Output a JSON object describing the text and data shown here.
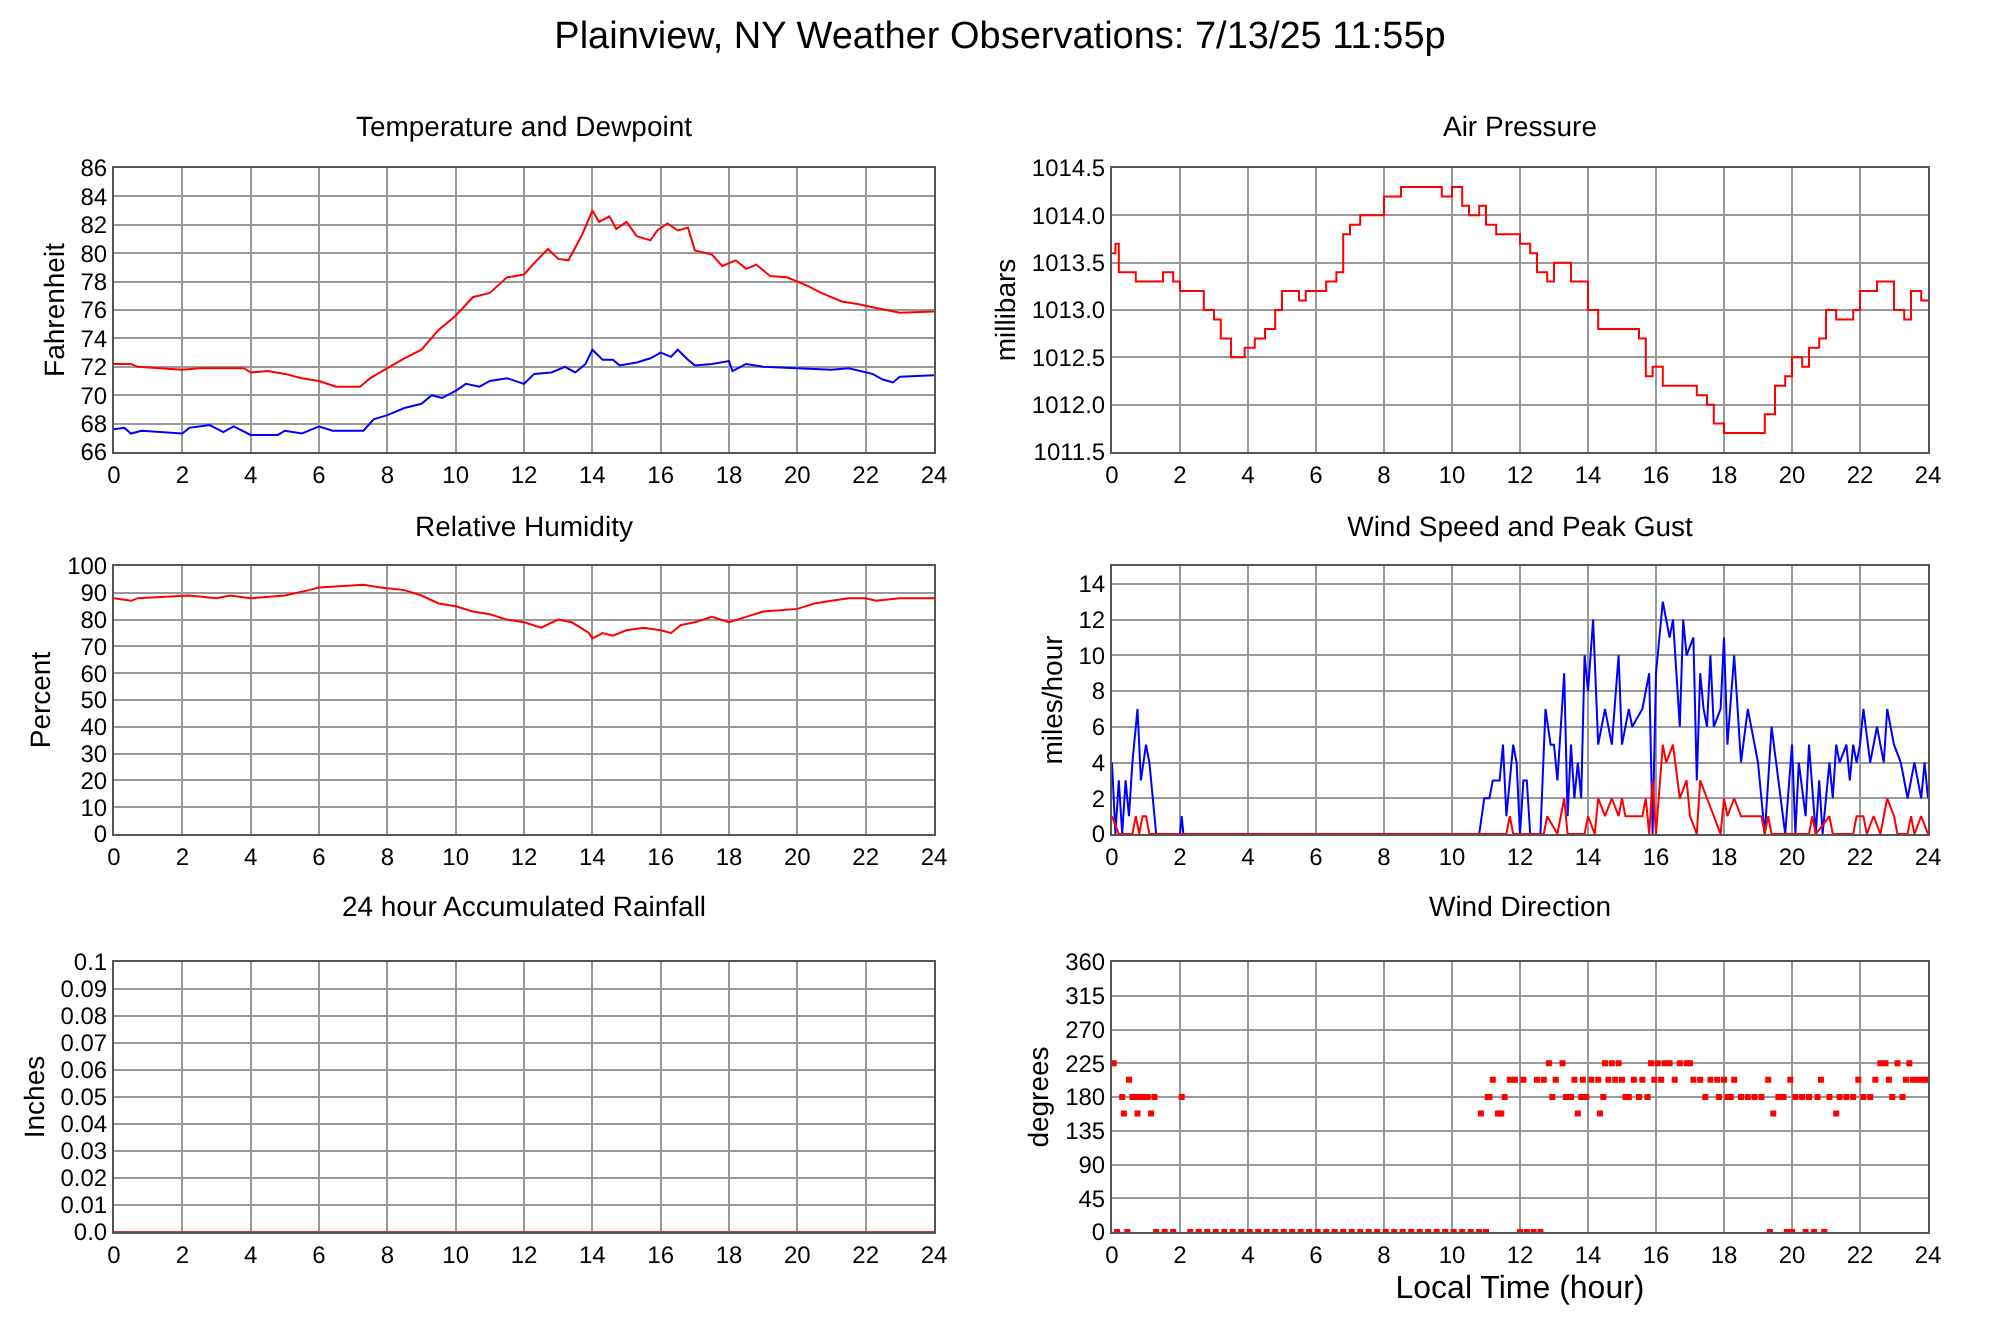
{
  "chart_data": [
    {
      "type": "line",
      "title": "Temperature and Dewpoint",
      "ylabel": "Fahrenheit",
      "annotations": [
        "Plainview, NY Weather Observations: 7/13/25 11:55p"
      ],
      "xlim": [
        0,
        24
      ],
      "xticks": [
        0,
        2,
        4,
        6,
        8,
        10,
        12,
        14,
        16,
        18,
        20,
        22,
        24
      ],
      "ylim": [
        66,
        86
      ],
      "yticks": [
        66,
        68,
        70,
        72,
        74,
        76,
        78,
        80,
        82,
        84,
        86
      ],
      "grid": true,
      "series": [
        {
          "color": "#ff0000",
          "x": [
            0,
            0.5,
            0.7,
            2,
            2.5,
            3.8,
            4,
            4.5,
            5,
            5.5,
            6,
            6.5,
            7.2,
            7.5,
            8,
            8.5,
            9,
            9.5,
            10,
            10.5,
            11,
            11.5,
            12,
            12.3,
            12.7,
            13,
            13.3,
            13.7,
            14,
            14.2,
            14.5,
            14.7,
            15,
            15.3,
            15.7,
            15.9,
            16.2,
            16.5,
            16.8,
            17,
            17.5,
            17.8,
            18.2,
            18.5,
            18.8,
            19.2,
            19.7,
            20.3,
            20.7,
            21.3,
            21.8,
            22.2,
            22.6,
            23,
            24
          ],
          "values": [
            72.2,
            72.2,
            72.0,
            71.8,
            71.9,
            71.9,
            71.6,
            71.7,
            71.5,
            71.2,
            71.0,
            70.6,
            70.6,
            71.2,
            71.9,
            72.6,
            73.2,
            74.6,
            75.6,
            76.9,
            77.2,
            78.3,
            78.5,
            79.3,
            80.3,
            79.6,
            79.5,
            81.3,
            83.0,
            82.2,
            82.6,
            81.7,
            82.2,
            81.2,
            80.9,
            81.6,
            82.1,
            81.6,
            81.8,
            80.2,
            79.9,
            79.1,
            79.5,
            78.9,
            79.2,
            78.4,
            78.3,
            77.7,
            77.2,
            76.6,
            76.4,
            76.2,
            76.0,
            75.8,
            75.9
          ]
        },
        {
          "color": "#0000ff",
          "x": [
            0,
            0.3,
            0.5,
            0.8,
            2,
            2.2,
            2.8,
            3.2,
            3.5,
            4,
            4.8,
            5,
            5.5,
            6,
            6.4,
            7.3,
            7.6,
            8,
            8.5,
            9,
            9.3,
            9.6,
            10,
            10.3,
            10.7,
            11,
            11.5,
            12,
            12.3,
            12.8,
            13.2,
            13.5,
            13.8,
            14,
            14.3,
            14.6,
            14.8,
            15.3,
            15.7,
            16,
            16.3,
            16.5,
            16.8,
            17,
            17.5,
            18,
            18.1,
            18.5,
            19,
            20,
            21,
            21.5,
            22.2,
            22.5,
            22.8,
            23,
            24
          ],
          "values": [
            67.6,
            67.7,
            67.3,
            67.5,
            67.3,
            67.7,
            67.9,
            67.4,
            67.8,
            67.2,
            67.2,
            67.5,
            67.3,
            67.8,
            67.5,
            67.5,
            68.3,
            68.6,
            69.1,
            69.4,
            70.0,
            69.8,
            70.3,
            70.8,
            70.6,
            71.0,
            71.2,
            70.8,
            71.5,
            71.6,
            72.0,
            71.6,
            72.2,
            73.2,
            72.5,
            72.5,
            72.1,
            72.3,
            72.6,
            73.0,
            72.7,
            73.2,
            72.5,
            72.1,
            72.2,
            72.4,
            71.7,
            72.2,
            72.0,
            71.9,
            71.8,
            71.9,
            71.5,
            71.1,
            70.9,
            71.3,
            71.4
          ]
        }
      ]
    },
    {
      "type": "step",
      "title": "Air Pressure",
      "ylabel": "millibars",
      "xlim": [
        0,
        24
      ],
      "xticks": [
        0,
        2,
        4,
        6,
        8,
        10,
        12,
        14,
        16,
        18,
        20,
        22,
        24
      ],
      "ylim": [
        1011.5,
        1014.5
      ],
      "yticks": [
        1011.5,
        {
          "value": 1012,
          "label": "1012.0"
        },
        1012.5,
        {
          "value": 1013,
          "label": "1013.0"
        },
        1013.5,
        {
          "value": 1014,
          "label": "1014.0"
        },
        1014.5
      ],
      "grid": true,
      "series": [
        {
          "color": "#ff0000",
          "x": [
            0,
            0.1,
            0.2,
            0.7,
            1.5,
            1.8,
            2,
            2.7,
            3,
            3.2,
            3.5,
            3.9,
            4.2,
            4.5,
            4.8,
            5,
            5.5,
            5.7,
            6.3,
            6.6,
            6.8,
            7,
            7.3,
            8,
            8.5,
            9.7,
            10,
            10.3,
            10.5,
            10.8,
            11,
            11.3,
            12,
            12.3,
            12.5,
            12.8,
            13,
            13.5,
            14,
            14.3,
            15.5,
            15.7,
            15.9,
            16.2,
            17.2,
            17.5,
            17.7,
            18,
            19.2,
            19.5,
            19.8,
            20,
            20.3,
            20.5,
            20.8,
            21,
            21.3,
            21.8,
            22,
            22.5,
            23,
            23.3,
            23.5,
            23.8,
            24
          ],
          "values": [
            1013.6,
            1013.7,
            1013.4,
            1013.3,
            1013.4,
            1013.3,
            1013.2,
            1013.0,
            1012.9,
            1012.7,
            1012.5,
            1012.6,
            1012.7,
            1012.8,
            1013.0,
            1013.2,
            1013.1,
            1013.2,
            1013.3,
            1013.4,
            1013.8,
            1013.9,
            1014.0,
            1014.2,
            1014.3,
            1014.2,
            1014.3,
            1014.1,
            1014.0,
            1014.1,
            1013.9,
            1013.8,
            1013.7,
            1013.6,
            1013.4,
            1013.3,
            1013.5,
            1013.3,
            1013.0,
            1012.8,
            1012.7,
            1012.3,
            1012.4,
            1012.2,
            1012.1,
            1012.0,
            1011.8,
            1011.7,
            1011.9,
            1012.2,
            1012.3,
            1012.5,
            1012.4,
            1012.6,
            1012.7,
            1013.0,
            1012.9,
            1013.0,
            1013.2,
            1013.3,
            1013.0,
            1012.9,
            1013.2,
            1013.1,
            1013.1
          ]
        }
      ]
    },
    {
      "type": "line",
      "title": "Relative Humidity",
      "ylabel": "Percent",
      "xlim": [
        0,
        24
      ],
      "xticks": [
        0,
        2,
        4,
        6,
        8,
        10,
        12,
        14,
        16,
        18,
        20,
        22,
        24
      ],
      "ylim": [
        0,
        100
      ],
      "yticks": [
        0,
        10,
        20,
        30,
        40,
        50,
        60,
        70,
        80,
        90,
        100
      ],
      "grid": true,
      "series": [
        {
          "color": "#ff0000",
          "x": [
            0,
            0.5,
            0.7,
            2.2,
            3,
            3.4,
            4,
            5,
            5.7,
            6,
            7.3,
            7.8,
            8.5,
            9,
            9.5,
            10,
            10.5,
            11,
            11.5,
            12,
            12.5,
            13,
            13.4,
            13.9,
            14,
            14.3,
            14.6,
            15,
            15.5,
            16,
            16.3,
            16.6,
            17,
            17.5,
            18,
            18.5,
            19,
            20,
            20.5,
            21,
            21.5,
            22,
            22.3,
            23,
            24
          ],
          "values": [
            88,
            87,
            88,
            89,
            88,
            89,
            88,
            89,
            91,
            92,
            93,
            92,
            91,
            89,
            86,
            85,
            83,
            82,
            80,
            79,
            77,
            80,
            79,
            75,
            73,
            75,
            74,
            76,
            77,
            76,
            75,
            78,
            79,
            81,
            79,
            81,
            83,
            84,
            86,
            87,
            88,
            88,
            87,
            88,
            88
          ]
        }
      ]
    },
    {
      "type": "line",
      "title": "Wind Speed and Peak Gust",
      "ylabel": "miles/hour",
      "xlim": [
        0,
        24
      ],
      "xticks": [
        0,
        2,
        4,
        6,
        8,
        10,
        12,
        14,
        16,
        18,
        20,
        22,
        24
      ],
      "ylim": [
        0,
        15
      ],
      "yticks": [
        0,
        2,
        4,
        6,
        8,
        10,
        12,
        14
      ],
      "grid": true,
      "series": [
        {
          "color": "#0000ff",
          "x": [
            0,
            0.1,
            0.2,
            0.3,
            0.4,
            0.5,
            0.6,
            0.75,
            0.85,
            1.0,
            1.1,
            1.3,
            2,
            2.05,
            2.1,
            10.8,
            10.95,
            11.1,
            11.2,
            11.4,
            11.5,
            11.6,
            11.8,
            11.9,
            12,
            12.1,
            12.2,
            12.3,
            12.6,
            12.75,
            12.9,
            13.0,
            13.1,
            13.3,
            13.4,
            13.5,
            13.6,
            13.7,
            13.8,
            13.9,
            14.0,
            14.15,
            14.3,
            14.5,
            14.7,
            14.9,
            15.0,
            15.2,
            15.3,
            15.6,
            15.8,
            15.9,
            16.0,
            16.2,
            16.4,
            16.5,
            16.7,
            16.8,
            16.9,
            17.1,
            17.2,
            17.3,
            17.4,
            17.5,
            17.6,
            17.7,
            17.9,
            18.0,
            18.1,
            18.3,
            18.5,
            18.7,
            18.9,
            19.0,
            19.2,
            19.4,
            19.6,
            19.8,
            20.0,
            20.1,
            20.2,
            20.4,
            20.5,
            20.7,
            20.8,
            20.9,
            21.1,
            21.2,
            21.3,
            21.4,
            21.6,
            21.7,
            21.8,
            21.9,
            22.0,
            22.1,
            22.3,
            22.5,
            22.7,
            22.8,
            23.0,
            23.2,
            23.4,
            23.6,
            23.8,
            23.9,
            24
          ],
          "values": [
            4,
            0,
            3,
            0,
            3,
            1,
            4,
            7,
            3,
            5,
            4,
            0,
            0,
            1,
            0,
            0,
            2,
            2,
            3,
            3,
            5,
            1,
            5,
            4,
            0,
            3,
            3,
            0,
            0,
            7,
            5,
            5,
            3,
            9,
            1,
            5,
            2,
            4,
            2,
            10,
            8,
            12,
            5,
            7,
            5,
            10,
            5,
            7,
            6,
            7,
            9,
            0,
            9,
            13,
            11,
            12,
            6,
            12,
            10,
            11,
            3,
            9,
            7,
            6,
            10,
            6,
            7,
            11,
            5,
            10,
            4,
            7,
            5,
            4,
            0,
            6,
            3,
            0,
            5,
            0,
            4,
            1,
            5,
            0,
            3,
            0,
            4,
            2,
            5,
            4,
            5,
            3,
            5,
            4,
            5,
            7,
            4,
            6,
            4,
            7,
            5,
            4,
            2,
            4,
            2,
            4,
            2
          ]
        },
        {
          "color": "#ff0000",
          "x": [
            0,
            0.2,
            0.6,
            0.7,
            0.8,
            0.9,
            1.0,
            1.1,
            11.6,
            11.7,
            11.8,
            12.7,
            12.8,
            13.1,
            13.3,
            13.4,
            13.9,
            14.0,
            14.2,
            14.3,
            14.5,
            14.7,
            14.9,
            15.0,
            15.1,
            15.6,
            15.7,
            15.8,
            15.9,
            16.0,
            16.2,
            16.3,
            16.5,
            16.7,
            16.9,
            17.0,
            17.2,
            17.3,
            17.5,
            17.7,
            17.9,
            18.0,
            18.1,
            18.3,
            18.5,
            19.1,
            19.2,
            19.3,
            19.4,
            20.5,
            20.6,
            20.7,
            21.1,
            21.2,
            21.8,
            21.9,
            22.1,
            22.2,
            22.4,
            22.6,
            22.8,
            23.0,
            23.1,
            23.4,
            23.5,
            23.6,
            23.8,
            24
          ],
          "values": [
            1,
            0,
            0,
            1,
            0,
            1,
            1,
            0,
            0,
            1,
            0,
            0,
            1,
            0,
            2,
            0,
            0,
            1,
            0,
            2,
            1,
            2,
            1,
            2,
            1,
            1,
            2,
            0,
            3,
            0,
            5,
            4,
            5,
            2,
            3,
            1,
            0,
            3,
            2,
            1,
            0,
            2,
            1,
            2,
            1,
            1,
            0,
            1,
            0,
            0,
            1,
            0,
            1,
            0,
            0,
            1,
            1,
            0,
            1,
            0,
            2,
            1,
            0,
            0,
            1,
            0,
            1,
            0
          ]
        }
      ]
    },
    {
      "type": "line",
      "title": "24 hour Accumulated Rainfall",
      "ylabel": "Inches",
      "xlim": [
        0,
        24
      ],
      "xticks": [
        0,
        2,
        4,
        6,
        8,
        10,
        12,
        14,
        16,
        18,
        20,
        22,
        24
      ],
      "ylim": [
        0,
        0.1
      ],
      "yticks": [
        {
          "value": 0,
          "label": "0.0"
        },
        0.01,
        0.02,
        0.03,
        0.04,
        0.05,
        0.06,
        0.07,
        0.08,
        0.09,
        0.1
      ],
      "grid": true,
      "series": [
        {
          "color": "#c04040",
          "x": [
            0,
            24
          ],
          "values": [
            0,
            0
          ]
        }
      ]
    },
    {
      "type": "scatter",
      "title": "Wind Direction",
      "xlabel": "Local Time (hour)",
      "ylabel": "degrees",
      "xlim": [
        0,
        24
      ],
      "xticks": [
        0,
        2,
        4,
        6,
        8,
        10,
        12,
        14,
        16,
        18,
        20,
        22,
        24
      ],
      "ylim": [
        0,
        360
      ],
      "yticks": [
        0,
        45,
        90,
        135,
        180,
        225,
        270,
        315,
        360
      ],
      "grid": true,
      "marker": "square",
      "series": [
        {
          "color": "#ff0000",
          "x": [
            0.05,
            0.15,
            0.3,
            0.35,
            0.45,
            0.5,
            0.6,
            0.7,
            0.75,
            0.85,
            0.95,
            1.05,
            1.15,
            1.25,
            1.3,
            1.55,
            1.8,
            2.05,
            2.3,
            2.55,
            2.8,
            3.05,
            3.3,
            3.55,
            3.8,
            4.05,
            4.3,
            4.55,
            4.8,
            5.05,
            5.3,
            5.55,
            5.8,
            6.05,
            6.3,
            6.55,
            6.8,
            7.05,
            7.3,
            7.55,
            7.8,
            8.05,
            8.3,
            8.55,
            8.8,
            9.05,
            9.3,
            9.55,
            9.8,
            10.05,
            10.3,
            10.55,
            10.8,
            10.85,
            11.0,
            11.05,
            11.1,
            11.2,
            11.35,
            11.45,
            11.55,
            11.7,
            11.85,
            12.0,
            12.1,
            12.2,
            12.4,
            12.5,
            12.6,
            12.7,
            12.85,
            12.95,
            13.05,
            13.25,
            13.35,
            13.5,
            13.6,
            13.7,
            13.8,
            13.85,
            13.95,
            14.1,
            14.3,
            14.35,
            14.45,
            14.5,
            14.6,
            14.7,
            14.8,
            14.9,
            15.0,
            15.1,
            15.2,
            15.35,
            15.5,
            15.6,
            15.75,
            15.85,
            15.95,
            16.05,
            16.15,
            16.25,
            16.4,
            16.55,
            16.7,
            16.9,
            17.0,
            17.1,
            17.3,
            17.45,
            17.6,
            17.8,
            17.85,
            18.0,
            18.1,
            18.2,
            18.3,
            18.5,
            18.7,
            18.9,
            19.1,
            19.3,
            19.35,
            19.45,
            19.6,
            19.75,
            19.85,
            19.95,
            20.0,
            20.1,
            20.3,
            20.4,
            20.5,
            20.65,
            20.75,
            20.85,
            20.95,
            21.1,
            21.3,
            21.4,
            21.6,
            21.8,
            21.95,
            22.1,
            22.3,
            22.45,
            22.6,
            22.75,
            22.85,
            22.95,
            23.1,
            23.25,
            23.35,
            23.45,
            23.55,
            23.7,
            23.85,
            24
          ],
          "values": [
            225,
            0,
            180,
            158,
            0,
            203,
            180,
            180,
            158,
            180,
            180,
            180,
            158,
            180,
            0,
            0,
            0,
            180,
            0,
            0,
            0,
            0,
            0,
            0,
            0,
            0,
            0,
            0,
            0,
            0,
            0,
            0,
            0,
            0,
            0,
            0,
            0,
            0,
            0,
            0,
            0,
            0,
            0,
            0,
            0,
            0,
            0,
            0,
            0,
            0,
            0,
            0,
            0,
            158,
            0,
            180,
            180,
            203,
            158,
            158,
            180,
            203,
            203,
            0,
            203,
            0,
            0,
            203,
            0,
            203,
            225,
            180,
            203,
            225,
            180,
            180,
            203,
            158,
            180,
            203,
            180,
            203,
            203,
            158,
            180,
            225,
            203,
            225,
            203,
            225,
            203,
            180,
            180,
            203,
            180,
            203,
            180,
            225,
            203,
            225,
            203,
            225,
            225,
            203,
            225,
            225,
            225,
            203,
            203,
            180,
            203,
            203,
            180,
            203,
            180,
            180,
            203,
            180,
            180,
            180,
            180,
            203,
            0,
            158,
            180,
            180,
            0,
            203,
            0,
            180,
            180,
            0,
            180,
            0,
            180,
            203,
            0,
            180,
            158,
            180,
            180,
            180,
            203,
            180,
            180,
            203,
            225,
            225,
            203,
            180,
            225,
            180,
            203,
            225,
            203,
            203,
            203,
            203
          ]
        }
      ]
    }
  ]
}
